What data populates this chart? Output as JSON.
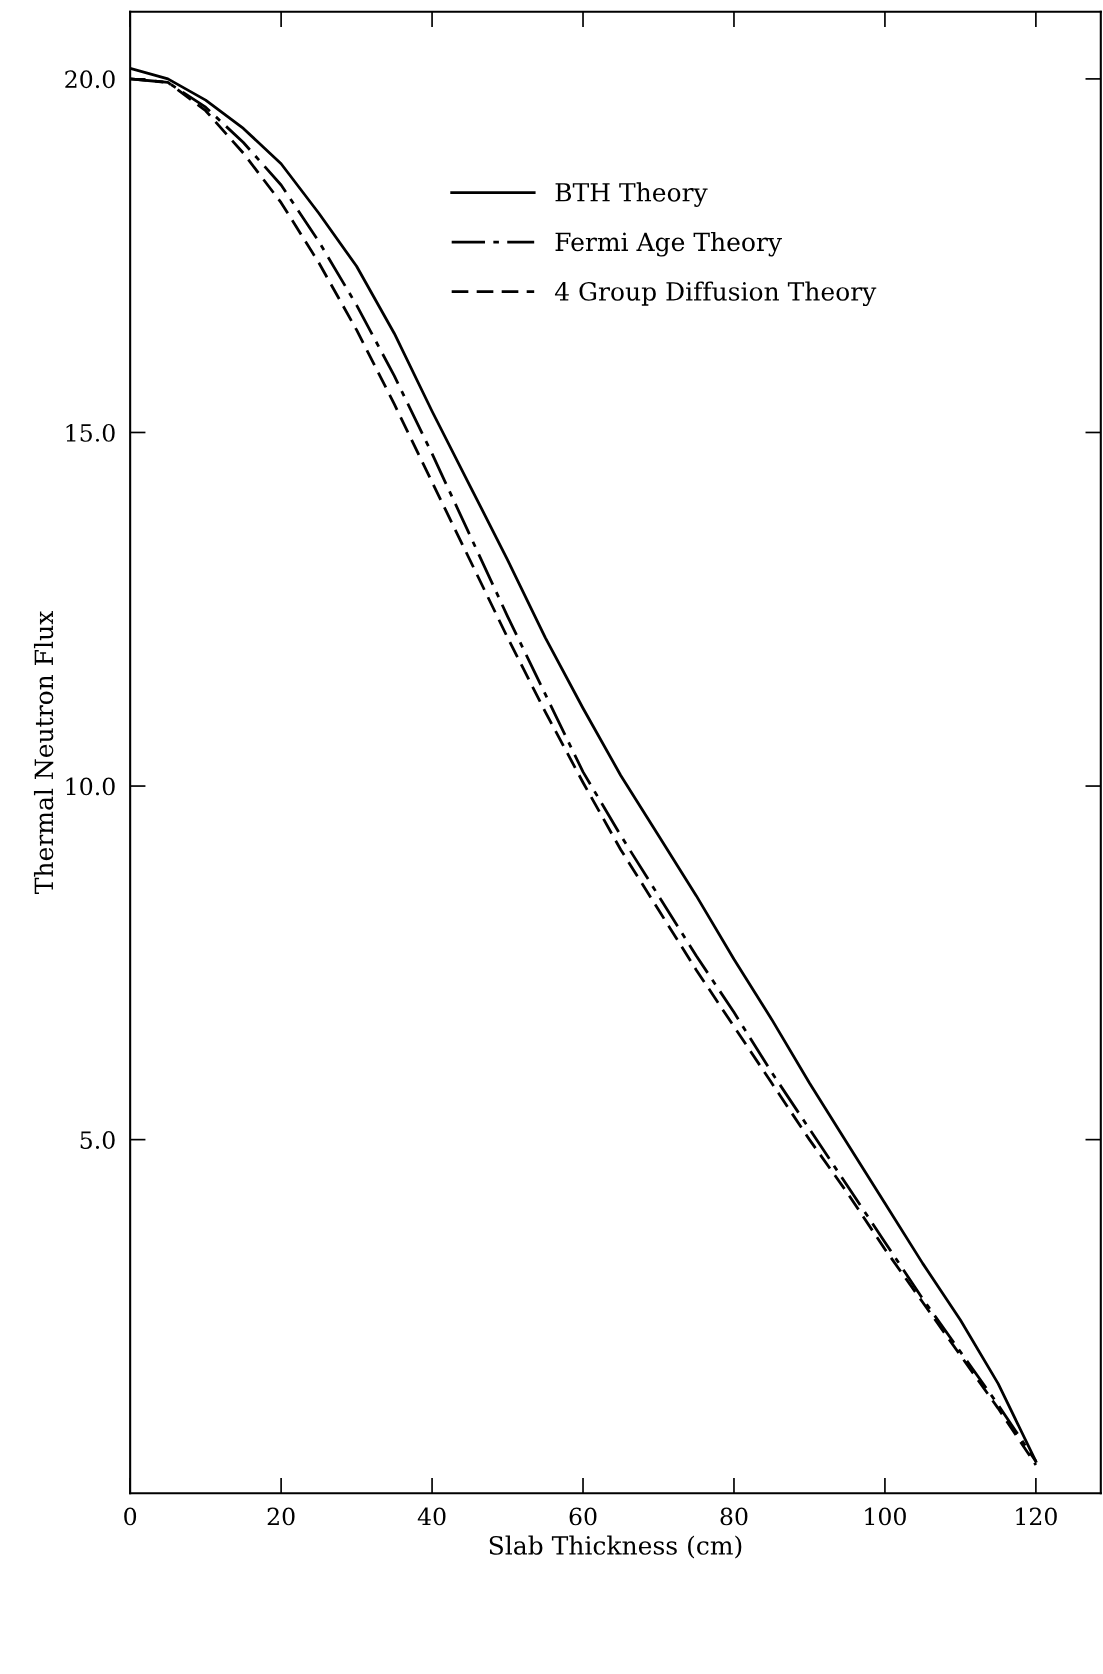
{
  "chart_data": {
    "type": "line",
    "xlabel": "Slab Thickness (cm)",
    "ylabel": "Thermal Neutron Flux",
    "x": [
      0,
      5,
      10,
      15,
      20,
      25,
      30,
      35,
      40,
      45,
      50,
      55,
      60,
      65,
      70,
      75,
      80,
      85,
      90,
      95,
      100,
      105,
      110,
      115,
      120
    ],
    "series": [
      {
        "name": "BTH Theory",
        "color": "#000000",
        "line_style": "solid",
        "values": [
          20.15,
          20.0,
          19.7,
          19.3,
          18.8,
          18.1,
          17.35,
          16.4,
          15.3,
          14.25,
          13.2,
          12.1,
          11.1,
          10.15,
          9.3,
          8.45,
          7.55,
          6.7,
          5.8,
          4.95,
          4.1,
          3.25,
          2.45,
          1.55,
          0.45
        ]
      },
      {
        "name": "Fermi Age Theory",
        "color": "#000000",
        "line_style": "dashdot",
        "values": [
          20.0,
          19.95,
          19.6,
          19.1,
          18.5,
          17.7,
          16.8,
          15.8,
          14.7,
          13.55,
          12.4,
          11.3,
          10.2,
          9.3,
          8.45,
          7.6,
          6.8,
          5.95,
          5.15,
          4.35,
          3.55,
          2.75,
          2.0,
          1.25,
          0.45
        ]
      },
      {
        "name": "4 Group Diffusion Theory",
        "color": "#000000",
        "line_style": "dashed",
        "values": [
          20.0,
          19.95,
          19.55,
          18.95,
          18.25,
          17.4,
          16.45,
          15.4,
          14.3,
          13.2,
          12.1,
          11.05,
          10.05,
          9.1,
          8.25,
          7.4,
          6.6,
          5.8,
          5.0,
          4.25,
          3.45,
          2.7,
          1.95,
          1.2,
          0.4
        ]
      }
    ],
    "xlim": [
      0,
      128.6
    ],
    "ylim": [
      0,
      20.95
    ],
    "xticks": [
      0,
      20,
      40,
      60,
      80,
      100,
      120
    ],
    "yticks": [
      {
        "value": 5,
        "label": "5.0"
      },
      {
        "value": 10,
        "label": "10.0"
      },
      {
        "value": 15,
        "label": "15.0"
      },
      {
        "value": 20,
        "label": "20.0"
      }
    ],
    "grid": false,
    "legend": "top",
    "marker": "none"
  }
}
